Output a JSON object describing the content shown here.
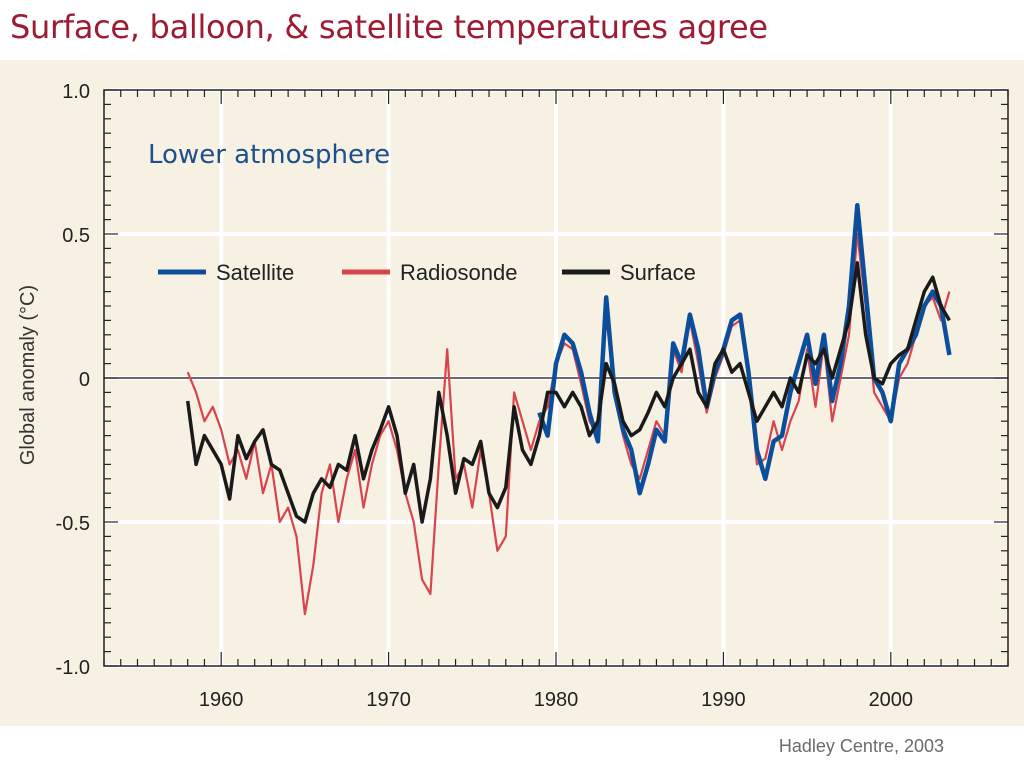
{
  "slide": {
    "title": "Surface, balloon, & satellite temperatures agree",
    "credit": "Hadley Centre, 2003"
  },
  "chart_data": {
    "type": "line",
    "title": "Lower atmosphere",
    "xlabel": "",
    "ylabel": "Global anomaly (°C)",
    "xlim": [
      1953,
      2007
    ],
    "ylim": [
      -1.0,
      1.0
    ],
    "xticks": [
      1960,
      1970,
      1980,
      1990,
      2000
    ],
    "yticks": [
      -1.0,
      -0.5,
      0,
      0.5,
      1.0
    ],
    "ytick_labels": [
      "-1.0",
      "-0.5",
      "0",
      "0.5",
      "1.0"
    ],
    "grid": true,
    "zero_line": true,
    "legend_position": "top-left",
    "series": [
      {
        "name": "Satellite",
        "color": "#0b4f9c",
        "x": [
          1979,
          1979.5,
          1980,
          1980.5,
          1981,
          1981.5,
          1982,
          1982.5,
          1983,
          1983.5,
          1984,
          1984.5,
          1985,
          1985.5,
          1986,
          1986.5,
          1987,
          1987.5,
          1988,
          1988.5,
          1989,
          1989.5,
          1990,
          1990.5,
          1991,
          1991.5,
          1992,
          1992.5,
          1993,
          1993.5,
          1994,
          1994.5,
          1995,
          1995.5,
          1996,
          1996.5,
          1997,
          1997.5,
          1998,
          1998.5,
          1999,
          1999.5,
          2000,
          2000.5,
          2001,
          2001.5,
          2002,
          2002.5,
          2003,
          2003.5
        ],
        "values": [
          -0.12,
          -0.2,
          0.05,
          0.15,
          0.12,
          0.02,
          -0.12,
          -0.22,
          0.28,
          -0.05,
          -0.18,
          -0.25,
          -0.4,
          -0.3,
          -0.18,
          -0.22,
          0.12,
          0.05,
          0.22,
          0.1,
          -0.1,
          0.02,
          0.1,
          0.2,
          0.22,
          0.02,
          -0.25,
          -0.35,
          -0.22,
          -0.2,
          -0.05,
          0.05,
          0.15,
          -0.02,
          0.15,
          -0.08,
          0.05,
          0.25,
          0.6,
          0.3,
          0.0,
          -0.05,
          -0.15,
          0.05,
          0.1,
          0.15,
          0.25,
          0.3,
          0.25,
          0.08
        ]
      },
      {
        "name": "Radiosonde",
        "color": "#d9434e",
        "x": [
          1958,
          1958.5,
          1959,
          1959.5,
          1960,
          1960.5,
          1961,
          1961.5,
          1962,
          1962.5,
          1963,
          1963.5,
          1964,
          1964.5,
          1965,
          1965.5,
          1966,
          1966.5,
          1967,
          1967.5,
          1968,
          1968.5,
          1969,
          1969.5,
          1970,
          1970.5,
          1971,
          1971.5,
          1972,
          1972.5,
          1973,
          1973.5,
          1974,
          1974.5,
          1975,
          1975.5,
          1976,
          1976.5,
          1977,
          1977.5,
          1978,
          1978.5,
          1979,
          1979.5,
          1980,
          1980.5,
          1981,
          1981.5,
          1982,
          1982.5,
          1983,
          1983.5,
          1984,
          1984.5,
          1985,
          1985.5,
          1986,
          1986.5,
          1987,
          1987.5,
          1988,
          1988.5,
          1989,
          1989.5,
          1990,
          1990.5,
          1991,
          1991.5,
          1992,
          1992.5,
          1993,
          1993.5,
          1994,
          1994.5,
          1995,
          1995.5,
          1996,
          1996.5,
          1997,
          1997.5,
          1998,
          1998.5,
          1999,
          1999.5,
          2000,
          2000.5,
          2001,
          2001.5,
          2002,
          2002.5,
          2003,
          2003.5
        ],
        "values": [
          0.02,
          -0.05,
          -0.15,
          -0.1,
          -0.18,
          -0.3,
          -0.25,
          -0.35,
          -0.22,
          -0.4,
          -0.3,
          -0.5,
          -0.45,
          -0.55,
          -0.82,
          -0.65,
          -0.4,
          -0.3,
          -0.5,
          -0.35,
          -0.25,
          -0.45,
          -0.3,
          -0.2,
          -0.15,
          -0.25,
          -0.4,
          -0.5,
          -0.7,
          -0.75,
          -0.3,
          0.1,
          -0.35,
          -0.3,
          -0.45,
          -0.25,
          -0.4,
          -0.6,
          -0.55,
          -0.05,
          -0.15,
          -0.25,
          -0.15,
          -0.1,
          0.05,
          0.12,
          0.1,
          -0.02,
          -0.15,
          -0.2,
          0.22,
          -0.05,
          -0.2,
          -0.3,
          -0.35,
          -0.25,
          -0.15,
          -0.2,
          0.1,
          0.02,
          0.2,
          0.05,
          -0.12,
          0.0,
          0.08,
          0.18,
          0.2,
          0.0,
          -0.3,
          -0.28,
          -0.15,
          -0.25,
          -0.15,
          -0.08,
          0.1,
          -0.1,
          0.12,
          -0.15,
          0.0,
          0.15,
          0.5,
          0.25,
          -0.05,
          -0.1,
          -0.15,
          0.0,
          0.05,
          0.15,
          0.25,
          0.28,
          0.2,
          0.3
        ]
      },
      {
        "name": "Surface",
        "color": "#1a1a1a",
        "x": [
          1958,
          1958.5,
          1959,
          1959.5,
          1960,
          1960.5,
          1961,
          1961.5,
          1962,
          1962.5,
          1963,
          1963.5,
          1964,
          1964.5,
          1965,
          1965.5,
          1966,
          1966.5,
          1967,
          1967.5,
          1968,
          1968.5,
          1969,
          1969.5,
          1970,
          1970.5,
          1971,
          1971.5,
          1972,
          1972.5,
          1973,
          1973.5,
          1974,
          1974.5,
          1975,
          1975.5,
          1976,
          1976.5,
          1977,
          1977.5,
          1978,
          1978.5,
          1979,
          1979.5,
          1980,
          1980.5,
          1981,
          1981.5,
          1982,
          1982.5,
          1983,
          1983.5,
          1984,
          1984.5,
          1985,
          1985.5,
          1986,
          1986.5,
          1987,
          1987.5,
          1988,
          1988.5,
          1989,
          1989.5,
          1990,
          1990.5,
          1991,
          1991.5,
          1992,
          1992.5,
          1993,
          1993.5,
          1994,
          1994.5,
          1995,
          1995.5,
          1996,
          1996.5,
          1997,
          1997.5,
          1998,
          1998.5,
          1999,
          1999.5,
          2000,
          2000.5,
          2001,
          2001.5,
          2002,
          2002.5,
          2003,
          2003.5
        ],
        "values": [
          -0.08,
          -0.3,
          -0.2,
          -0.25,
          -0.3,
          -0.42,
          -0.2,
          -0.28,
          -0.22,
          -0.18,
          -0.3,
          -0.32,
          -0.4,
          -0.48,
          -0.5,
          -0.4,
          -0.35,
          -0.38,
          -0.3,
          -0.32,
          -0.2,
          -0.35,
          -0.25,
          -0.18,
          -0.1,
          -0.2,
          -0.4,
          -0.3,
          -0.5,
          -0.35,
          -0.05,
          -0.2,
          -0.4,
          -0.28,
          -0.3,
          -0.22,
          -0.4,
          -0.45,
          -0.38,
          -0.1,
          -0.25,
          -0.3,
          -0.2,
          -0.05,
          -0.05,
          -0.1,
          -0.05,
          -0.1,
          -0.2,
          -0.15,
          0.05,
          -0.02,
          -0.15,
          -0.2,
          -0.18,
          -0.12,
          -0.05,
          -0.1,
          0.0,
          0.05,
          0.1,
          -0.05,
          -0.1,
          0.05,
          0.1,
          0.02,
          0.05,
          -0.05,
          -0.15,
          -0.1,
          -0.05,
          -0.1,
          0.0,
          -0.05,
          0.08,
          0.05,
          0.1,
          0.0,
          0.1,
          0.2,
          0.4,
          0.15,
          0.0,
          -0.02,
          0.05,
          0.08,
          0.1,
          0.2,
          0.3,
          0.35,
          0.25,
          0.2
        ]
      }
    ]
  }
}
